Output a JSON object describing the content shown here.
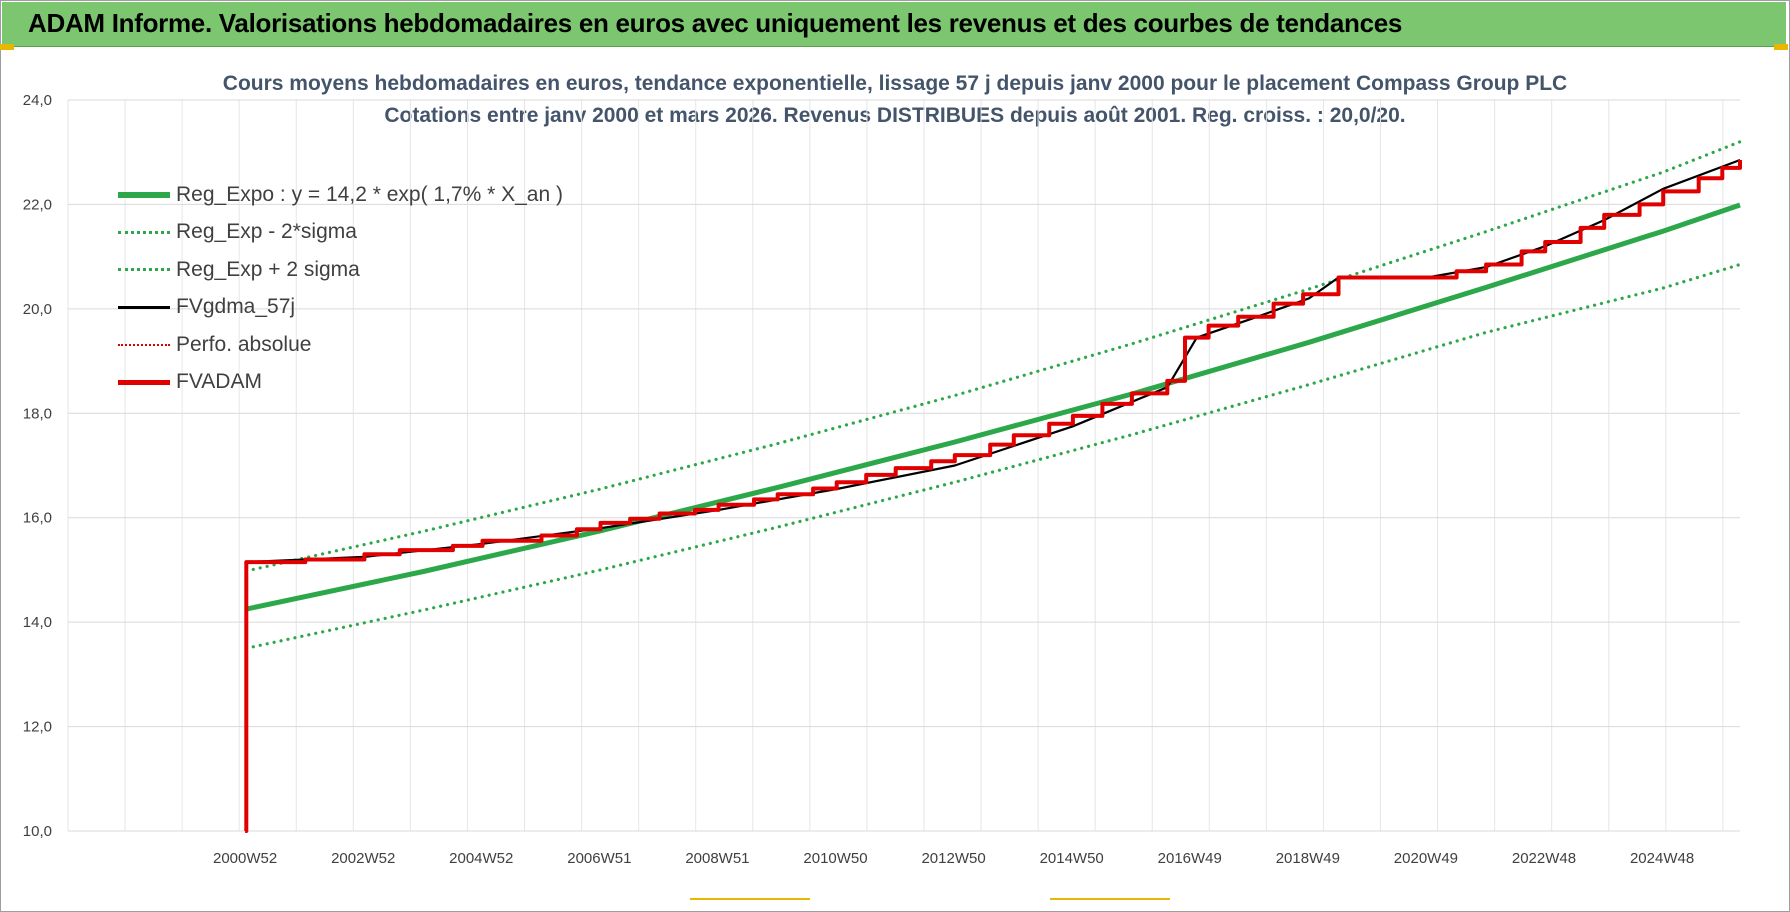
{
  "header": {
    "title": "ADAM Informe. Valorisations hebdomadaires en euros avec uniquement les revenus et des courbes de tendances"
  },
  "colors": {
    "header_bg": "#7bc66e",
    "reg_expo": "#2ca84a",
    "reg_band": "#2ca84a",
    "fvgdma": "#000000",
    "perfo": "#e00000",
    "fvadam": "#e00000",
    "title_text": "#44546a"
  },
  "chart_data": {
    "type": "line",
    "title": "Cours moyens hebdomadaires en euros, tendance exponentielle, lissage 57 j depuis janv 2000  pour le  placement Compass Group PLC",
    "subtitle": "Cotations entre janv 2000 et mars 2026. Revenus DISTRIBUES depuis août 2001. Reg. croiss. : 20,0/20.",
    "xlabel": "",
    "ylabel": "",
    "ylim": [
      10,
      24
    ],
    "yticks": [
      "10,0",
      "12,0",
      "14,0",
      "16,0",
      "18,0",
      "20,0",
      "22,0",
      "24,0"
    ],
    "xtick_labels": [
      "2000W52",
      "2002W52",
      "2004W52",
      "2006W51",
      "2008W51",
      "2010W50",
      "2012W50",
      "2014W50",
      "2016W49",
      "2018W49",
      "2020W49",
      "2022W48",
      "2024W48"
    ],
    "xtick_years": [
      2000.98,
      2002.98,
      2004.98,
      2006.98,
      2008.98,
      2010.98,
      2012.98,
      2014.98,
      2016.98,
      2018.98,
      2020.98,
      2022.98,
      2024.98
    ],
    "xlim": [
      1997.98,
      2026.3
    ],
    "grid": true,
    "legend_position": "top-left",
    "series": [
      {
        "name": "Reg_Expo : y = 14,2 * exp( 1,7% *  X_an )",
        "style": "solid-thick",
        "x": [
          2001.0,
          2004.0,
          2007.0,
          2010.0,
          2013.0,
          2016.0,
          2019.0,
          2022.0,
          2025.0,
          2026.3
        ],
        "y": [
          14.25,
          14.97,
          15.75,
          16.58,
          17.45,
          18.37,
          19.36,
          20.41,
          21.49,
          21.99
        ]
      },
      {
        "name": "Reg_Exp - 2*sigma",
        "style": "dotted",
        "x": [
          2001.0,
          2004.0,
          2007.0,
          2010.0,
          2013.0,
          2016.0,
          2019.0,
          2022.0,
          2025.0,
          2026.3
        ],
        "y": [
          13.5,
          14.23,
          15.0,
          15.82,
          16.68,
          17.59,
          18.55,
          19.55,
          20.4,
          20.85
        ]
      },
      {
        "name": "Reg_Exp + 2 sigma",
        "style": "dotted",
        "x": [
          2001.0,
          2004.0,
          2007.0,
          2010.0,
          2013.0,
          2016.0,
          2019.0,
          2022.0,
          2025.0,
          2026.3
        ],
        "y": [
          14.98,
          15.74,
          16.55,
          17.42,
          18.34,
          19.33,
          20.38,
          21.48,
          22.62,
          23.2
        ]
      },
      {
        "name": "FVgdma_57j",
        "style": "solid-thin",
        "x": [
          2001.0,
          2003.0,
          2005.0,
          2007.0,
          2009.0,
          2011.0,
          2013.0,
          2015.0,
          2016.6,
          2017.1,
          2018.0,
          2019.0,
          2019.5,
          2021.0,
          2022.0,
          2023.0,
          2024.0,
          2025.0,
          2026.3
        ],
        "y": [
          15.15,
          15.25,
          15.5,
          15.8,
          16.15,
          16.55,
          17.0,
          17.75,
          18.5,
          19.45,
          19.8,
          20.2,
          20.6,
          20.6,
          20.8,
          21.2,
          21.7,
          22.3,
          22.85
        ]
      },
      {
        "name": "Perfo. absolue",
        "style": "dotted",
        "x": [
          2001.0,
          2026.3
        ],
        "y": [
          15.15,
          22.85
        ]
      },
      {
        "name": "FVADAM",
        "style": "step",
        "x": [
          2000.98,
          2001.0,
          2002.0,
          2003.0,
          2003.6,
          2004.5,
          2005.0,
          2006.0,
          2006.6,
          2007.0,
          2007.5,
          2008.0,
          2008.6,
          2009.0,
          2009.6,
          2010.0,
          2010.6,
          2011.0,
          2011.5,
          2012.0,
          2012.6,
          2013.0,
          2013.6,
          2014.0,
          2014.6,
          2015.0,
          2015.5,
          2016.0,
          2016.6,
          2016.9,
          2017.3,
          2017.8,
          2018.4,
          2018.9,
          2019.5,
          2020.0,
          2021.0,
          2021.5,
          2022.0,
          2022.6,
          2023.0,
          2023.6,
          2024.0,
          2024.6,
          2025.0,
          2025.6,
          2026.0,
          2026.3
        ],
        "y": [
          10.0,
          15.15,
          15.2,
          15.3,
          15.38,
          15.46,
          15.56,
          15.66,
          15.78,
          15.9,
          15.98,
          16.08,
          16.15,
          16.25,
          16.35,
          16.45,
          16.56,
          16.68,
          16.82,
          16.95,
          17.08,
          17.2,
          17.4,
          17.58,
          17.8,
          17.95,
          18.18,
          18.38,
          18.62,
          19.45,
          19.68,
          19.85,
          20.1,
          20.28,
          20.6,
          20.6,
          20.6,
          20.72,
          20.85,
          21.1,
          21.28,
          21.55,
          21.8,
          22.0,
          22.25,
          22.5,
          22.7,
          22.85
        ]
      }
    ]
  }
}
